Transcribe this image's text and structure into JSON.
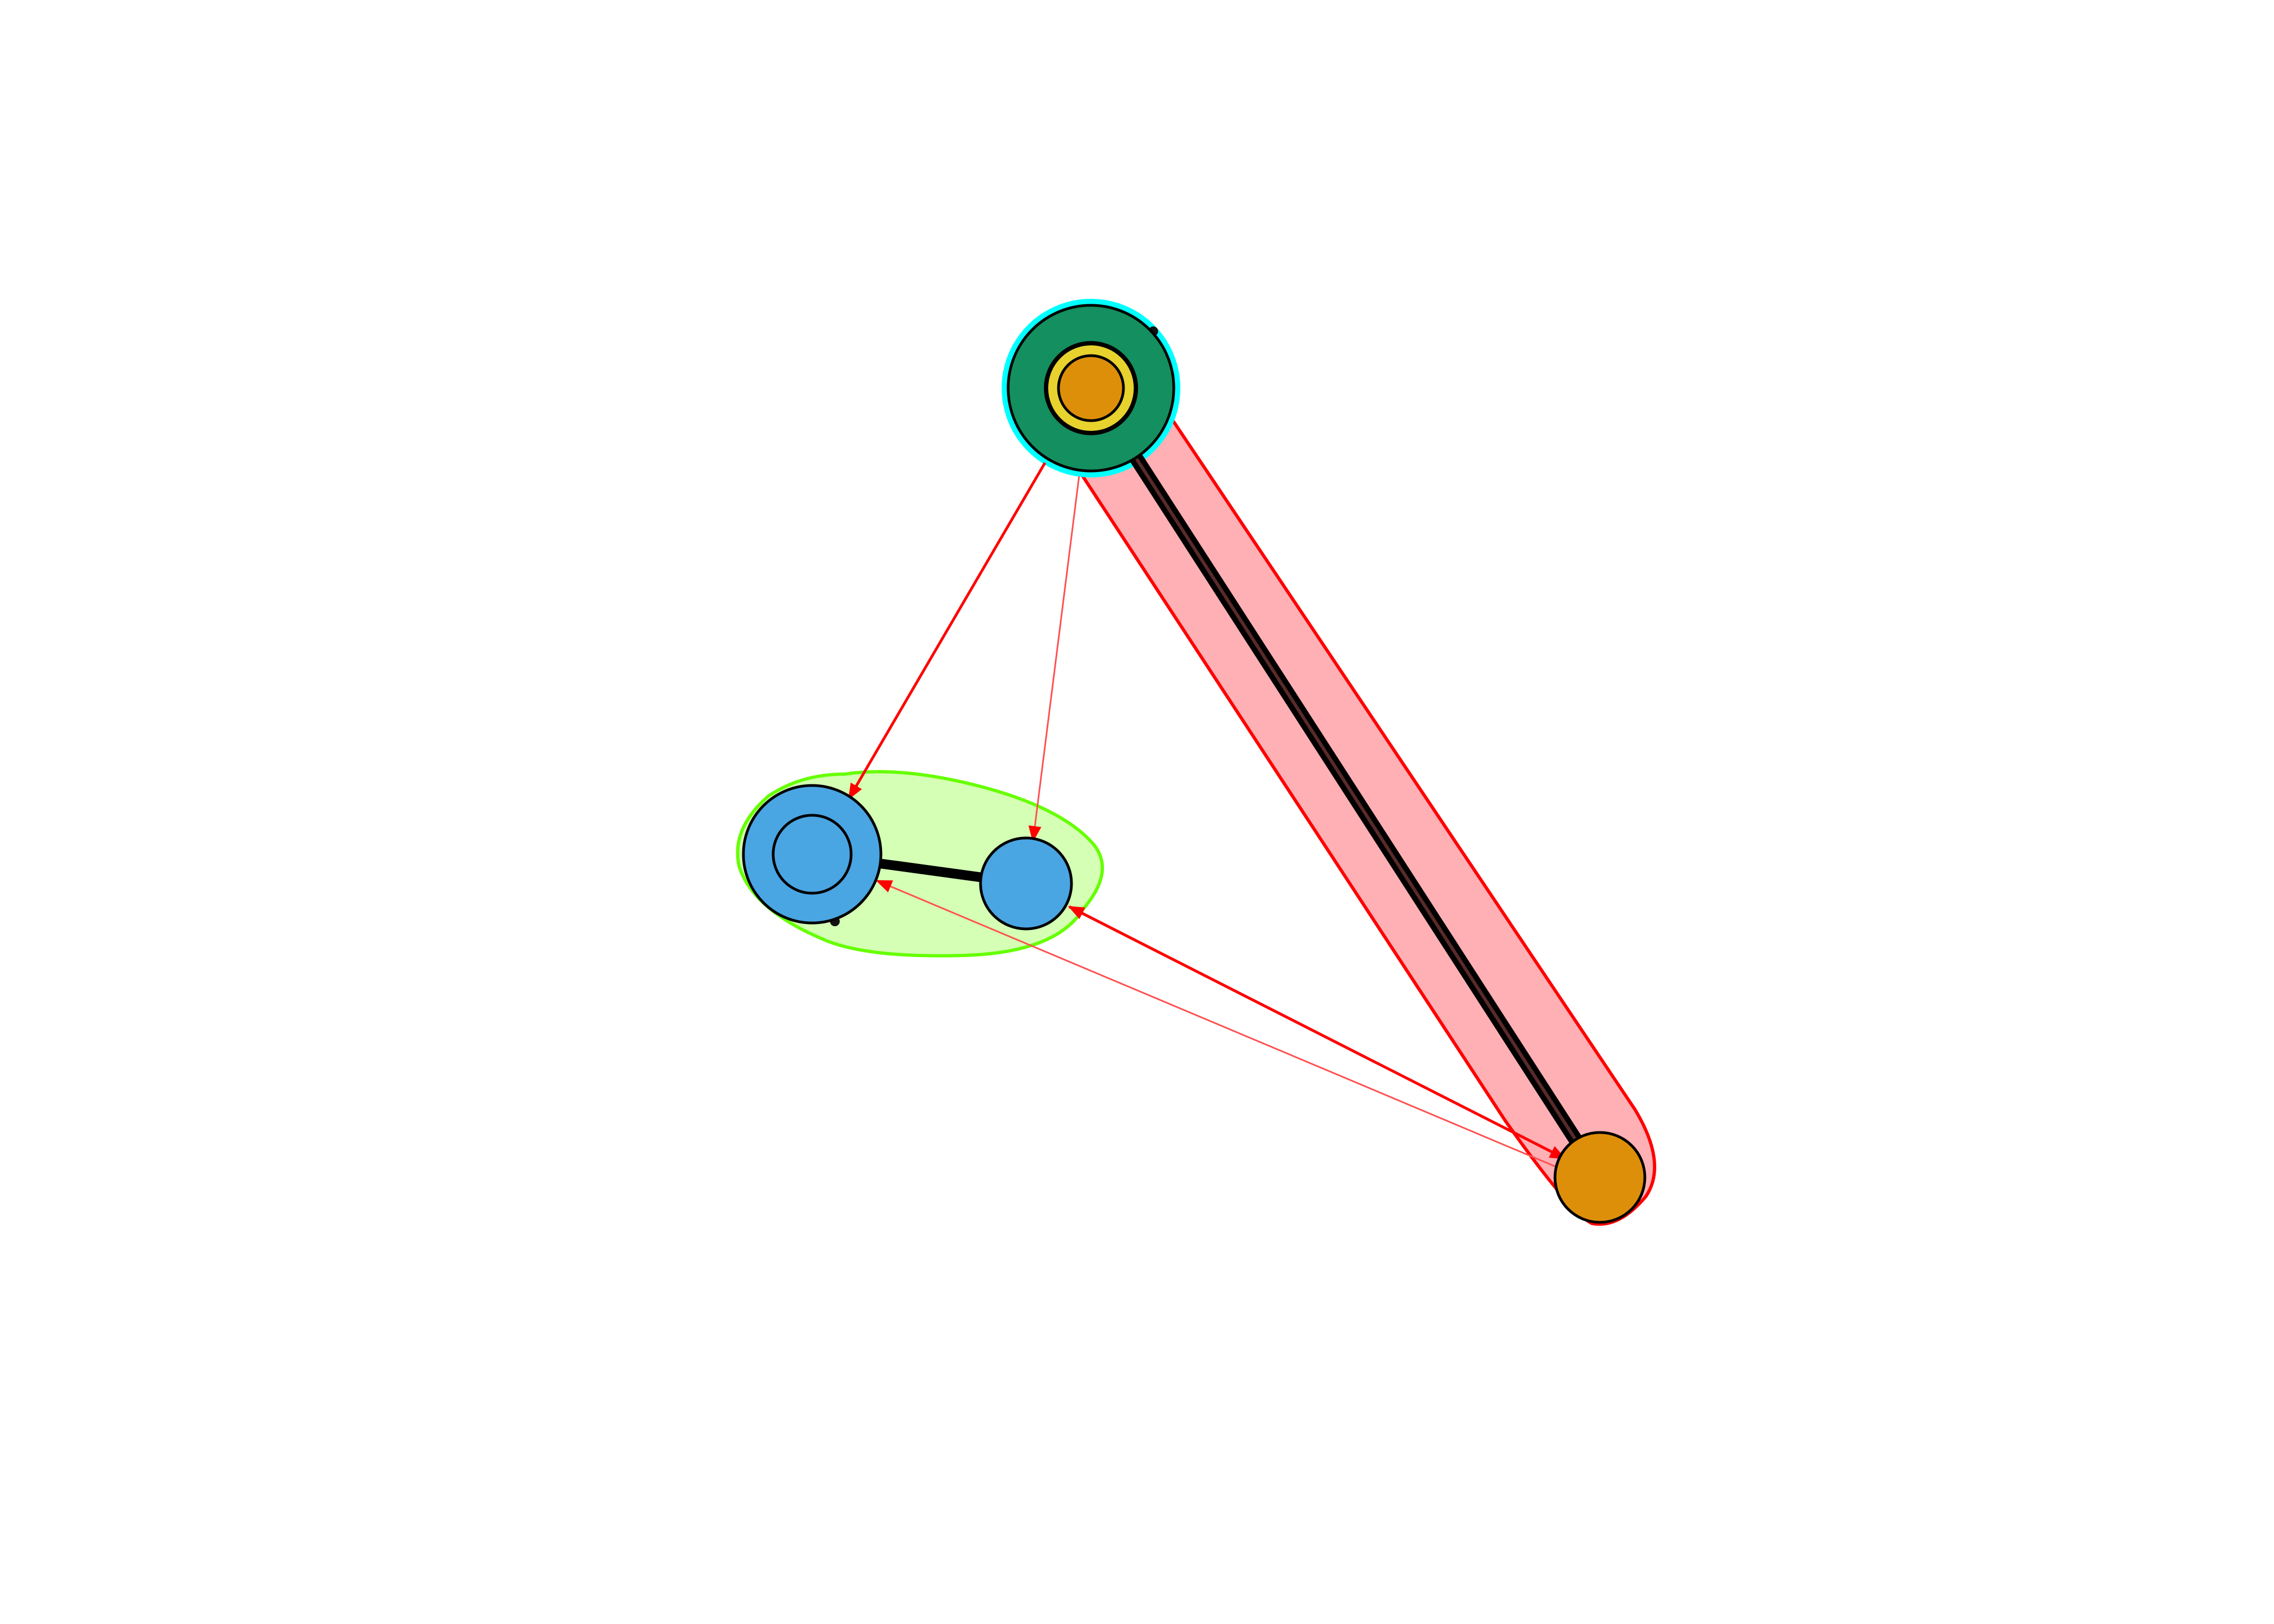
{
  "diagram": {
    "type": "network-graph",
    "directed_edge_color": "#ff0000",
    "undirected_edge_color": "#000000",
    "nodes": [
      {
        "id": "n1",
        "fill": "#148f5f",
        "role": "hub-top"
      },
      {
        "id": "n1-inner-ring",
        "fill": "#e8d22e"
      },
      {
        "id": "n1-core",
        "fill": "#de8f09"
      },
      {
        "id": "n2",
        "fill": "#4aa5e3",
        "role": "left"
      },
      {
        "id": "n2-inner",
        "fill": "#4aa5e3"
      },
      {
        "id": "n3",
        "fill": "#4aa5e3",
        "role": "middle"
      },
      {
        "id": "n4",
        "fill": "#de8f09",
        "role": "bottom-right"
      }
    ],
    "groups": [
      {
        "name": "cyan-group",
        "fill": "#00ffff",
        "stroke": "#00ffff",
        "members": [
          "n1"
        ]
      },
      {
        "name": "green-group",
        "fill": "#d4ffb4",
        "stroke": "#66ff00",
        "members": [
          "n2",
          "n3"
        ]
      },
      {
        "name": "red-group",
        "fill": "#ffb0b5",
        "stroke": "#ff0000",
        "members": [
          "n1",
          "n4"
        ]
      }
    ],
    "edges": [
      {
        "from": "n1",
        "to": "n4",
        "directed": false,
        "style": "thick-double"
      },
      {
        "from": "n2",
        "to": "n3",
        "directed": false,
        "style": "thick"
      },
      {
        "from": "n1",
        "to": "n2",
        "directed": true
      },
      {
        "from": "n1",
        "to": "n3",
        "directed": true,
        "style": "thin"
      },
      {
        "from": "n3",
        "to": "n4",
        "directed": true,
        "bidirectional": true
      },
      {
        "from": "n4",
        "to": "n2",
        "directed": true,
        "style": "thin"
      }
    ]
  }
}
